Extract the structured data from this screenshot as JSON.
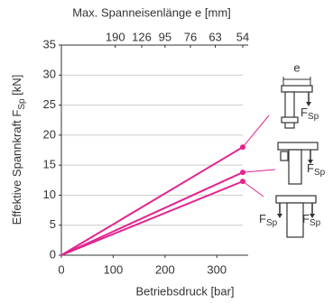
{
  "chart_data": {
    "type": "line",
    "title": "Max. Spanneisenlänge e [mm]",
    "x_label": "Betriebsdruck [bar]",
    "y_label": "Effektive Spannkraft F",
    "y_label_sub": "Sp",
    "y_label_unit": " [kN]",
    "x": [
      0,
      350
    ],
    "series": [
      {
        "color": "#e3248e",
        "values": [
          0,
          18
        ]
      },
      {
        "color": "#e3248e",
        "values": [
          0,
          13.8
        ]
      },
      {
        "color": "#e3248e",
        "values": [
          0,
          12.3
        ]
      }
    ],
    "xlim": [
      0,
      350
    ],
    "xticks": [
      0,
      100,
      200,
      300
    ],
    "x2ticks": [
      {
        "value": 104,
        "label": "190"
      },
      {
        "value": 155,
        "label": "126"
      },
      {
        "value": 200,
        "label": "95"
      },
      {
        "value": 249,
        "label": "76"
      },
      {
        "value": 297,
        "label": "63"
      },
      {
        "value": 350,
        "label": "54"
      }
    ],
    "ylim": [
      0,
      35
    ],
    "yticks": [
      0,
      5,
      10,
      15,
      20,
      25,
      30,
      35
    ],
    "grid": true,
    "annotations": [
      "e",
      "F",
      "Sp"
    ]
  }
}
